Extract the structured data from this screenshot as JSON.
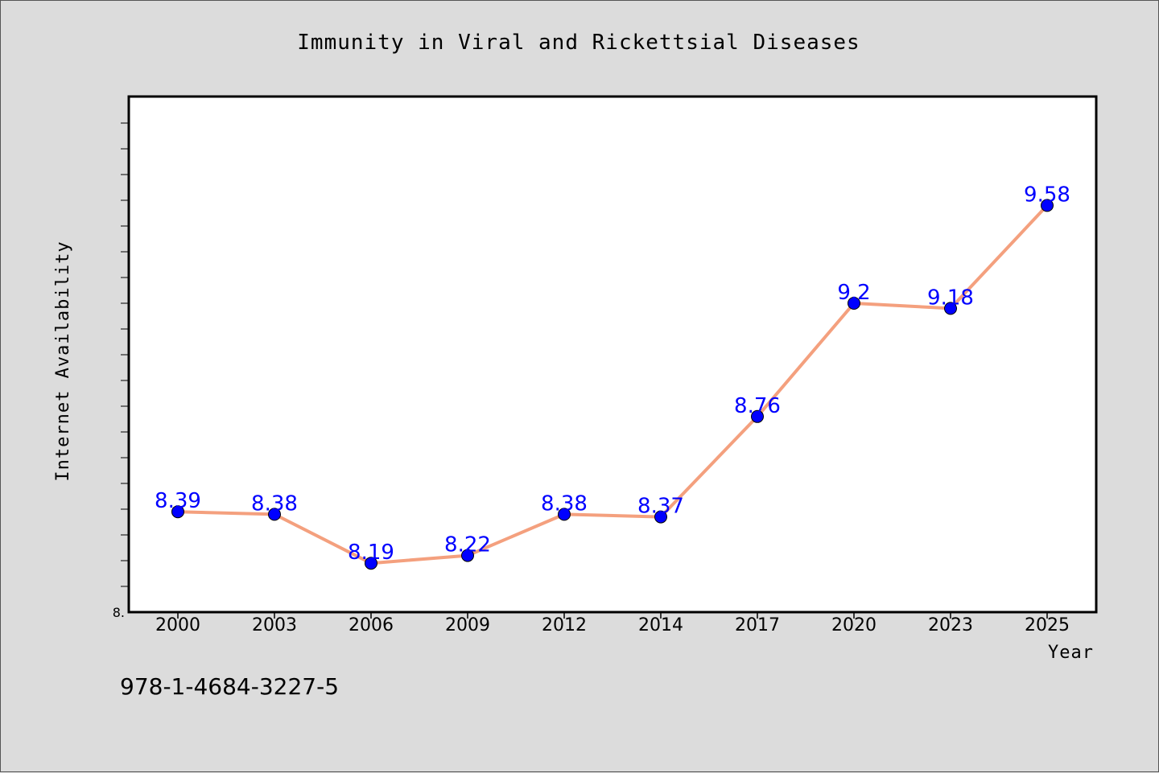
{
  "chart_data": {
    "type": "line",
    "title": "Immunity in Viral and Rickettsial Diseases",
    "xlabel": "Year",
    "ylabel": "Internet Availability",
    "categories": [
      "2000",
      "2003",
      "2006",
      "2009",
      "2012",
      "2014",
      "2017",
      "2020",
      "2023",
      "2025"
    ],
    "series": [
      {
        "values": [
          8.39,
          8.38,
          8.19,
          8.22,
          8.38,
          8.37,
          8.76,
          9.2,
          9.18,
          9.58
        ],
        "labels": [
          "8.39",
          "8.38",
          "8.19",
          "8.22",
          "8.38",
          "8.37",
          "8.76",
          "9.2",
          "9.18",
          "9.58"
        ],
        "line_color": "#f4a07e",
        "marker_color": "#0000ff"
      }
    ],
    "ylim": [
      8.0,
      10.0
    ],
    "ytick_label": "8.",
    "grid": false,
    "footnote": "978-1-4684-3227-5",
    "colors": {
      "background": "#dcdcdc",
      "plot_bg": "#ffffff",
      "label_color": "#0000ff"
    }
  }
}
